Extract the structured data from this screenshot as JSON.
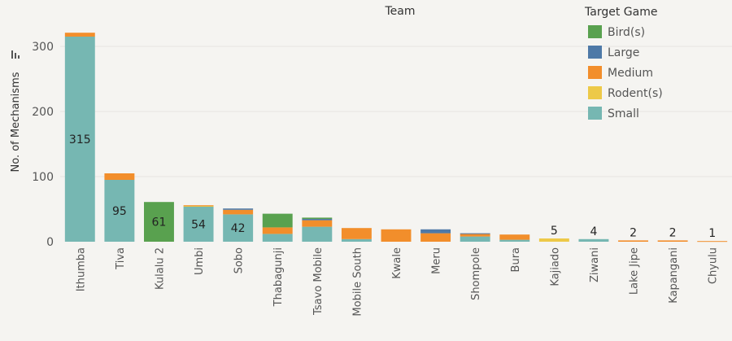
{
  "chart_data": {
    "type": "bar",
    "stacked": true,
    "title": "Team",
    "xlabel": "",
    "ylabel": "No. of Mechanisms",
    "ylim": [
      0,
      330
    ],
    "yticks": [
      0,
      100,
      200,
      300
    ],
    "grid": true,
    "legend_position": "top-right",
    "legend_title": "Target Game",
    "legend": [
      {
        "name": "Bird(s)",
        "color": "#59a14f"
      },
      {
        "name": "Large",
        "color": "#4e79a7"
      },
      {
        "name": "Medium",
        "color": "#f28e2b"
      },
      {
        "name": "Rodent(s)",
        "color": "#edc948"
      },
      {
        "name": "Small",
        "color": "#76b7b2"
      }
    ],
    "categories": [
      "Ithumba",
      "Tiva",
      "Kulalu 2",
      "Umbi",
      "Sobo",
      "Thabagunji",
      "Tsavo Mobile",
      "Mobile South",
      "Kwale",
      "Meru",
      "Shompole",
      "Bura",
      "Kajiado",
      "Ziwani",
      "Lake Jipe",
      "Kapangani",
      "Chyulu"
    ],
    "stack_order": [
      "Small",
      "Rodent(s)",
      "Medium",
      "Large",
      "Bird(s)"
    ],
    "series": [
      {
        "name": "Small",
        "values": [
          315,
          95,
          0,
          54,
          42,
          12,
          23,
          4,
          0,
          0,
          8,
          3,
          0,
          4,
          0,
          0,
          0
        ]
      },
      {
        "name": "Rodent(s)",
        "values": [
          0,
          0,
          0,
          1,
          0,
          0,
          0,
          0,
          0,
          0,
          0,
          0,
          5,
          0,
          0,
          0,
          0
        ]
      },
      {
        "name": "Medium",
        "values": [
          6,
          10,
          0,
          1,
          7,
          10,
          10,
          17,
          19,
          13,
          4,
          8,
          0,
          0,
          2,
          2,
          1
        ]
      },
      {
        "name": "Large",
        "values": [
          0,
          0,
          0,
          0,
          2,
          0,
          2,
          0,
          0,
          6,
          1,
          0,
          0,
          0,
          0,
          0,
          0
        ]
      },
      {
        "name": "Bird(s)",
        "values": [
          0,
          0,
          61,
          0,
          0,
          21,
          2,
          0,
          0,
          0,
          0,
          0,
          0,
          0,
          0,
          0,
          0
        ]
      }
    ],
    "data_labels": [
      {
        "category": "Ithumba",
        "series": "Small",
        "text": "315"
      },
      {
        "category": "Tiva",
        "series": "Small",
        "text": "95"
      },
      {
        "category": "Kulalu 2",
        "series": "Bird(s)",
        "text": "61"
      },
      {
        "category": "Umbi",
        "series": "Small",
        "text": "54"
      },
      {
        "category": "Sobo",
        "series": "Small",
        "text": "42"
      },
      {
        "category": "Kajiado",
        "series": "Rodent(s)",
        "text": "5",
        "position": "above"
      },
      {
        "category": "Ziwani",
        "series": "Small",
        "text": "4",
        "position": "above"
      },
      {
        "category": "Lake Jipe",
        "series": "Medium",
        "text": "2",
        "position": "above"
      },
      {
        "category": "Kapangani",
        "series": "Medium",
        "text": "2",
        "position": "above"
      },
      {
        "category": "Chyulu",
        "series": "Medium",
        "text": "1",
        "position": "above"
      }
    ]
  }
}
